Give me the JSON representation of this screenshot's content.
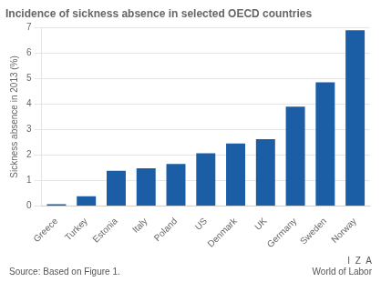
{
  "chart_data": {
    "type": "bar",
    "title": "Incidence of sickness absence in selected OECD countries",
    "categories": [
      "Greece",
      "Turkey",
      "Estonia",
      "Italy",
      "Poland",
      "US",
      "Denmark",
      "UK",
      "Germany",
      "Sweden",
      "Norway"
    ],
    "values": [
      0.07,
      0.38,
      1.38,
      1.48,
      1.65,
      2.07,
      2.45,
      2.62,
      3.9,
      4.85,
      6.9
    ],
    "color": "#1B5EA6",
    "y_label": "Sickness absence in 2013 (%)",
    "ylim": [
      0,
      7
    ],
    "yticks": [
      0,
      1,
      2,
      3,
      4,
      5,
      6,
      7
    ],
    "grid": true,
    "annotations": [
      "Source: Based on Figure 1.",
      "I  Z  A",
      "World of Labor"
    ]
  }
}
